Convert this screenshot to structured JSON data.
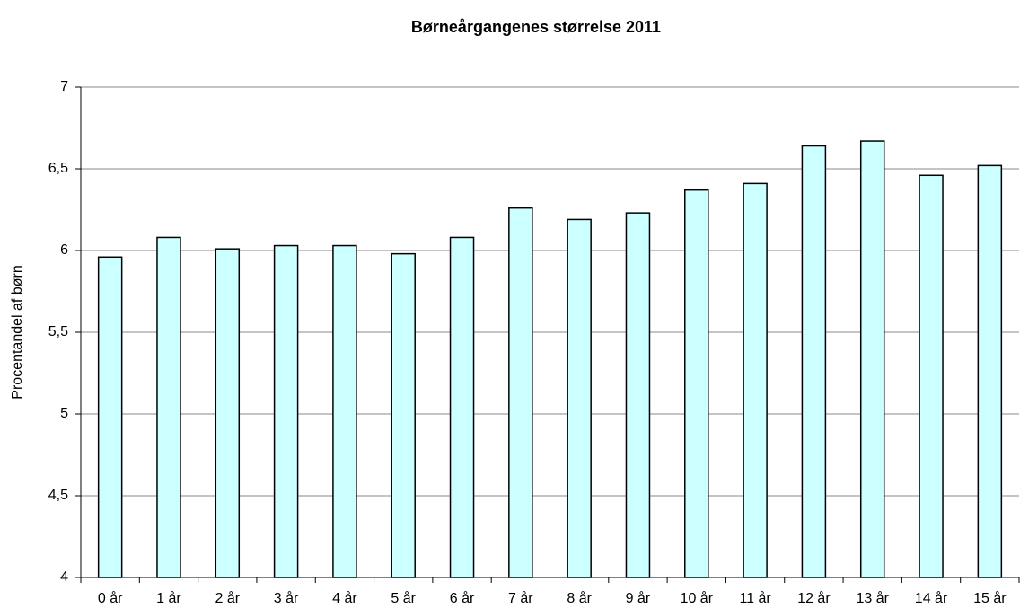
{
  "chart_data": {
    "type": "bar",
    "title": "Børneårgangenes størrelse 2011",
    "y_label": "Procentandel af børn",
    "categories": [
      "0 år",
      "1 år",
      "2 år",
      "3 år",
      "4 år",
      "5 år",
      "6 år",
      "7 år",
      "8 år",
      "9 år",
      "10 år",
      "11 år",
      "12 år",
      "13 år",
      "14 år",
      "15 år"
    ],
    "values": [
      5.96,
      6.08,
      6.01,
      6.03,
      6.03,
      5.98,
      6.08,
      6.26,
      6.19,
      6.23,
      6.37,
      6.41,
      6.64,
      6.67,
      6.46,
      6.52
    ],
    "color": "#ccffff",
    "ylim": [
      4,
      7
    ],
    "yticks": [
      4,
      {
        "value": 4.5,
        "label": "4,5"
      },
      5,
      {
        "value": 5.5,
        "label": "5,5"
      },
      6,
      {
        "value": 6.5,
        "label": "6,5"
      },
      7
    ],
    "grid": true
  }
}
